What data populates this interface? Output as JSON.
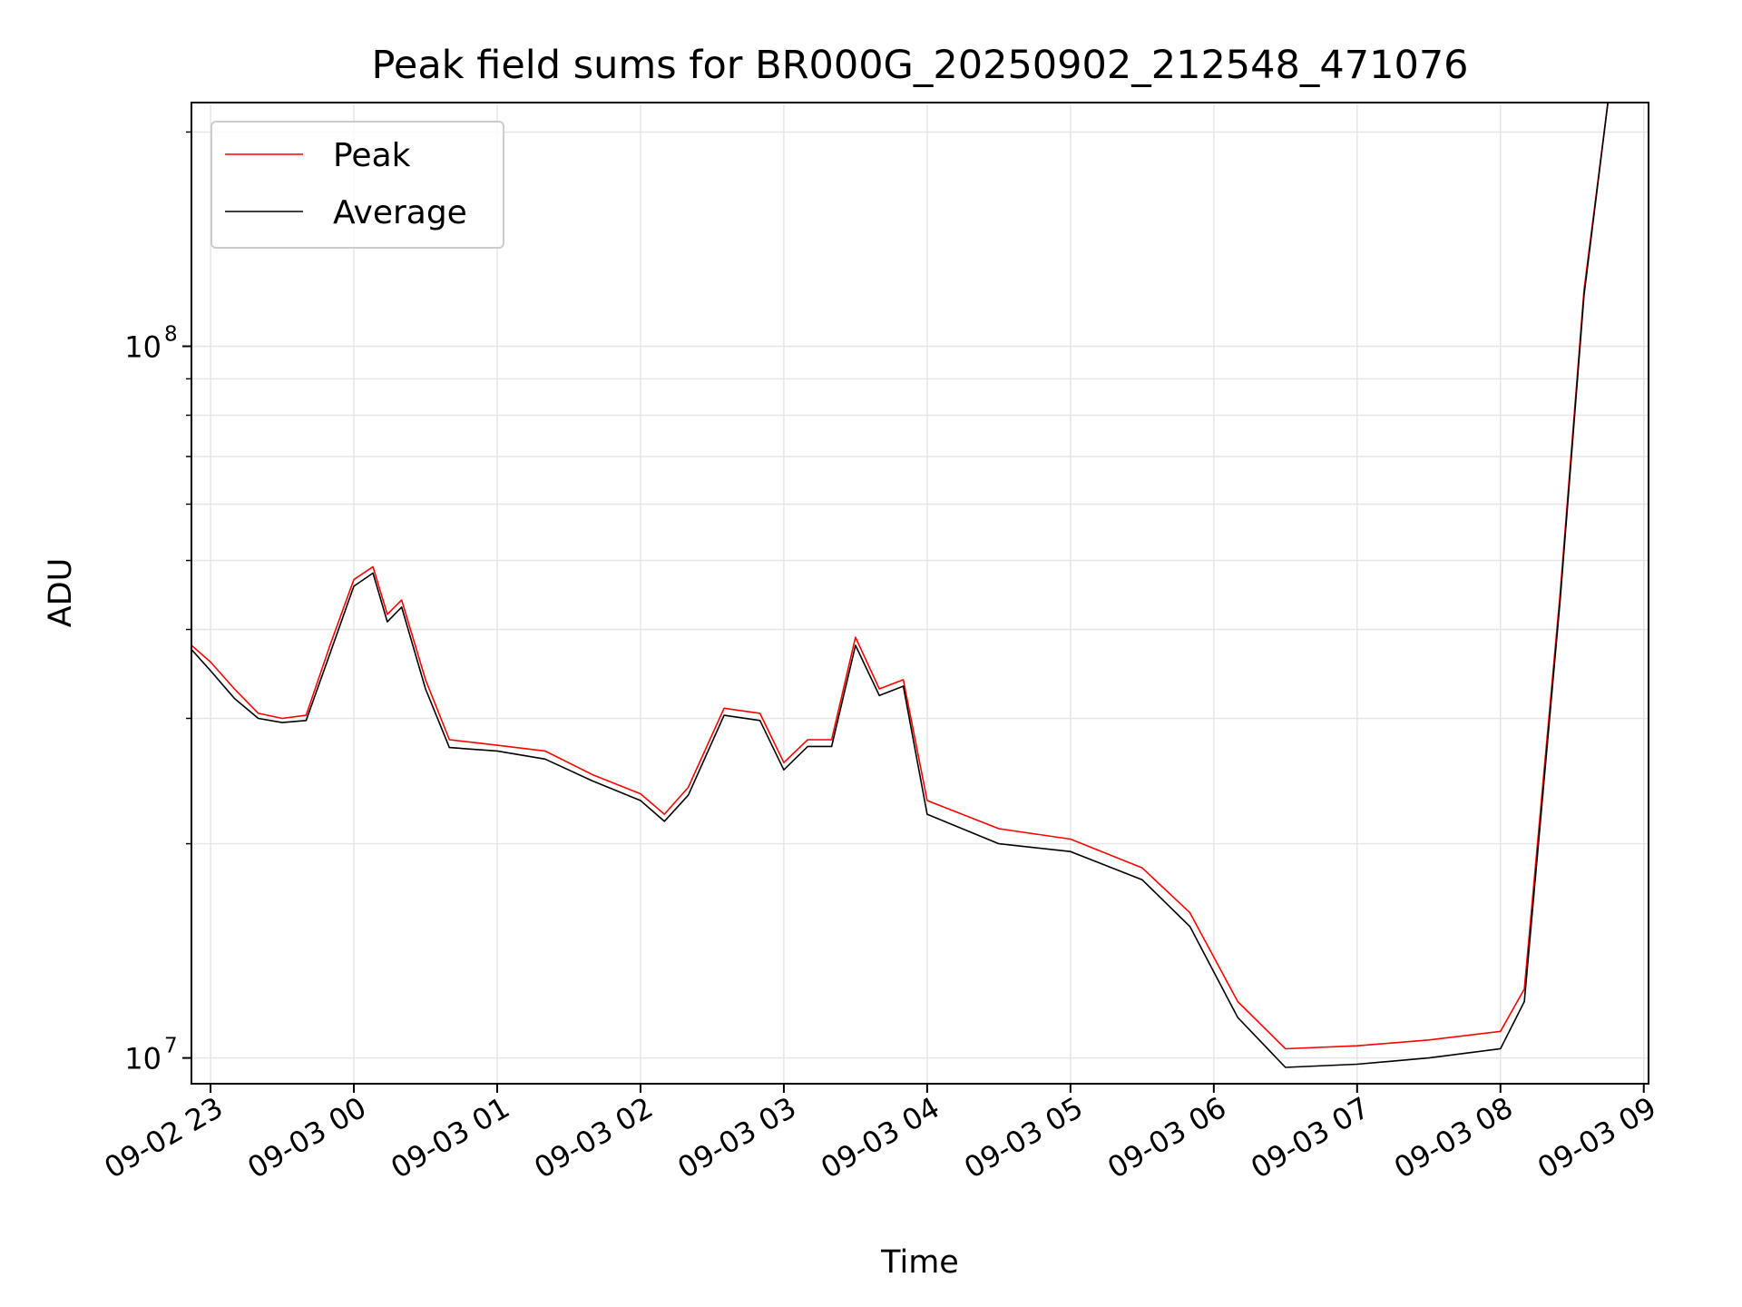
{
  "chart_data": {
    "type": "line",
    "title": "Peak field sums for BR000G_20250902_212548_471076",
    "xlabel": "Time",
    "ylabel": "ADU",
    "y_scale": "log",
    "ylim": [
      9200000,
      220000000
    ],
    "xlim": [
      "2025-09-02 22:52",
      "2025-09-03 09:02"
    ],
    "x_ticks": [
      {
        "label": "09-02 23",
        "t": "2025-09-02 23:00"
      },
      {
        "label": "09-03 00",
        "t": "2025-09-03 00:00"
      },
      {
        "label": "09-03 01",
        "t": "2025-09-03 01:00"
      },
      {
        "label": "09-03 02",
        "t": "2025-09-03 02:00"
      },
      {
        "label": "09-03 03",
        "t": "2025-09-03 03:00"
      },
      {
        "label": "09-03 04",
        "t": "2025-09-03 04:00"
      },
      {
        "label": "09-03 05",
        "t": "2025-09-03 05:00"
      },
      {
        "label": "09-03 06",
        "t": "2025-09-03 06:00"
      },
      {
        "label": "09-03 07",
        "t": "2025-09-03 07:00"
      },
      {
        "label": "09-03 08",
        "t": "2025-09-03 08:00"
      },
      {
        "label": "09-03 09",
        "t": "2025-09-03 09:00"
      }
    ],
    "y_ticks": [
      {
        "base": "10",
        "exp": "7",
        "value": 10000000
      },
      {
        "base": "10",
        "exp": "8",
        "value": 100000000
      }
    ],
    "y_minor_ticks": [
      20000000,
      30000000,
      40000000,
      50000000,
      60000000,
      70000000,
      80000000,
      90000000,
      200000000
    ],
    "grid": true,
    "legend_position": "top-left",
    "series": [
      {
        "name": "Peak",
        "color": "#ff0000",
        "points": [
          [
            "2025-09-02 22:52",
            38000000
          ],
          [
            "2025-09-02 23:00",
            36000000
          ],
          [
            "2025-09-02 23:10",
            33000000
          ],
          [
            "2025-09-02 23:20",
            30500000
          ],
          [
            "2025-09-02 23:30",
            30000000
          ],
          [
            "2025-09-02 23:40",
            30300000
          ],
          [
            "2025-09-02 23:50",
            38000000
          ],
          [
            "2025-09-03 00:00",
            47000000
          ],
          [
            "2025-09-03 00:08",
            49000000
          ],
          [
            "2025-09-03 00:14",
            42000000
          ],
          [
            "2025-09-03 00:20",
            44000000
          ],
          [
            "2025-09-03 00:30",
            34000000
          ],
          [
            "2025-09-03 00:40",
            28000000
          ],
          [
            "2025-09-03 01:00",
            27500000
          ],
          [
            "2025-09-03 01:20",
            27000000
          ],
          [
            "2025-09-03 01:40",
            25000000
          ],
          [
            "2025-09-03 02:00",
            23500000
          ],
          [
            "2025-09-03 02:10",
            22000000
          ],
          [
            "2025-09-03 02:20",
            24000000
          ],
          [
            "2025-09-03 02:35",
            31000000
          ],
          [
            "2025-09-03 02:50",
            30500000
          ],
          [
            "2025-09-03 03:00",
            26000000
          ],
          [
            "2025-09-03 03:10",
            28000000
          ],
          [
            "2025-09-03 03:20",
            28000000
          ],
          [
            "2025-09-03 03:30",
            39000000
          ],
          [
            "2025-09-03 03:40",
            33000000
          ],
          [
            "2025-09-03 03:50",
            34000000
          ],
          [
            "2025-09-03 04:00",
            23000000
          ],
          [
            "2025-09-03 04:30",
            21000000
          ],
          [
            "2025-09-03 05:00",
            20300000
          ],
          [
            "2025-09-03 05:30",
            18500000
          ],
          [
            "2025-09-03 05:50",
            16000000
          ],
          [
            "2025-09-03 06:10",
            12000000
          ],
          [
            "2025-09-03 06:30",
            10300000
          ],
          [
            "2025-09-03 07:00",
            10400000
          ],
          [
            "2025-09-03 07:30",
            10600000
          ],
          [
            "2025-09-03 08:00",
            10900000
          ],
          [
            "2025-09-03 08:10",
            12500000
          ],
          [
            "2025-09-03 08:25",
            45000000
          ],
          [
            "2025-09-03 08:35",
            120000000
          ],
          [
            "2025-09-03 08:45",
            220000000
          ]
        ]
      },
      {
        "name": "Average",
        "color": "#000000",
        "points": [
          [
            "2025-09-02 22:52",
            37500000
          ],
          [
            "2025-09-02 23:00",
            35000000
          ],
          [
            "2025-09-02 23:10",
            32000000
          ],
          [
            "2025-09-02 23:20",
            30000000
          ],
          [
            "2025-09-02 23:30",
            29600000
          ],
          [
            "2025-09-02 23:40",
            29800000
          ],
          [
            "2025-09-02 23:50",
            37000000
          ],
          [
            "2025-09-03 00:00",
            46000000
          ],
          [
            "2025-09-03 00:08",
            48000000
          ],
          [
            "2025-09-03 00:14",
            41000000
          ],
          [
            "2025-09-03 00:20",
            43000000
          ],
          [
            "2025-09-03 00:30",
            33000000
          ],
          [
            "2025-09-03 00:40",
            27300000
          ],
          [
            "2025-09-03 01:00",
            27000000
          ],
          [
            "2025-09-03 01:20",
            26300000
          ],
          [
            "2025-09-03 01:40",
            24500000
          ],
          [
            "2025-09-03 02:00",
            23000000
          ],
          [
            "2025-09-03 02:10",
            21500000
          ],
          [
            "2025-09-03 02:20",
            23400000
          ],
          [
            "2025-09-03 02:35",
            30300000
          ],
          [
            "2025-09-03 02:50",
            29800000
          ],
          [
            "2025-09-03 03:00",
            25400000
          ],
          [
            "2025-09-03 03:10",
            27400000
          ],
          [
            "2025-09-03 03:20",
            27400000
          ],
          [
            "2025-09-03 03:30",
            38000000
          ],
          [
            "2025-09-03 03:40",
            32300000
          ],
          [
            "2025-09-03 03:50",
            33300000
          ],
          [
            "2025-09-03 04:00",
            22000000
          ],
          [
            "2025-09-03 04:30",
            20000000
          ],
          [
            "2025-09-03 05:00",
            19500000
          ],
          [
            "2025-09-03 05:30",
            17800000
          ],
          [
            "2025-09-03 05:50",
            15300000
          ],
          [
            "2025-09-03 06:10",
            11400000
          ],
          [
            "2025-09-03 06:30",
            9700000
          ],
          [
            "2025-09-03 07:00",
            9800000
          ],
          [
            "2025-09-03 07:30",
            10000000
          ],
          [
            "2025-09-03 08:00",
            10300000
          ],
          [
            "2025-09-03 08:10",
            12000000
          ],
          [
            "2025-09-03 08:25",
            44000000
          ],
          [
            "2025-09-03 08:35",
            118000000
          ],
          [
            "2025-09-03 08:45",
            220000000
          ]
        ]
      }
    ]
  }
}
